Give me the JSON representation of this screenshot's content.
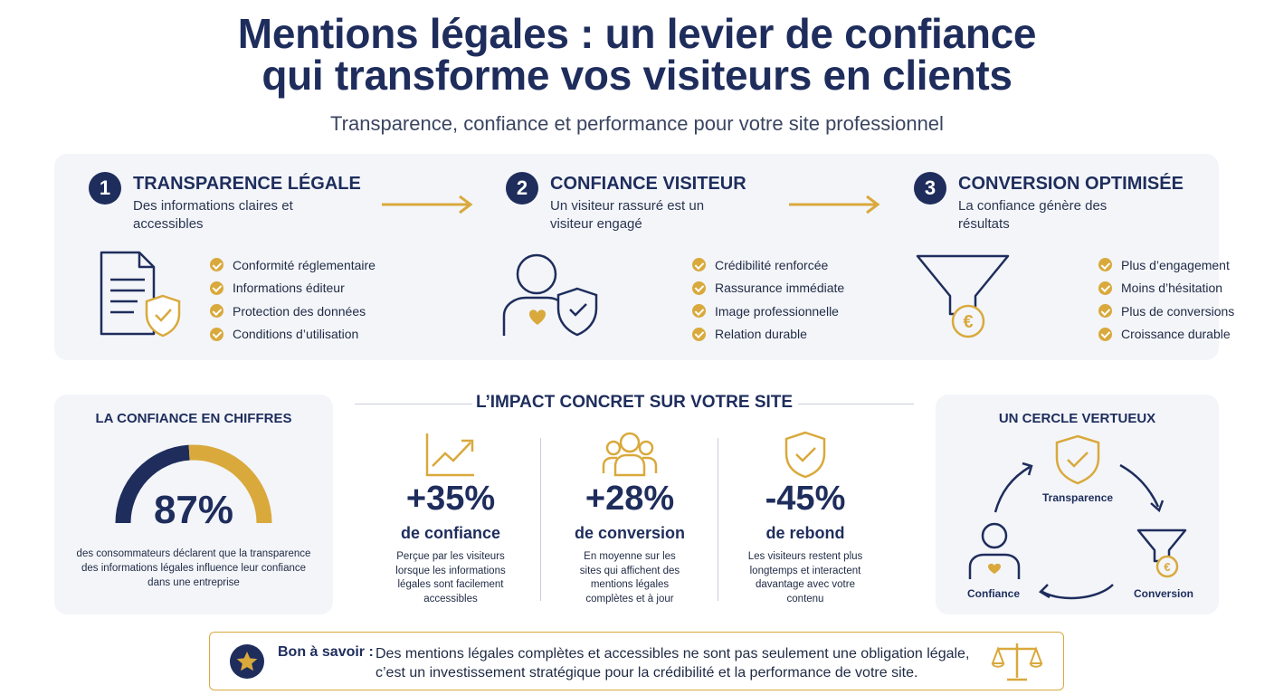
{
  "header": {
    "title_line1": "Mentions légales : un levier de confiance",
    "title_line2": "qui transforme vos visiteurs en clients",
    "subtitle": "Transparence, confiance et performance pour votre site professionnel"
  },
  "steps": [
    {
      "number": "1",
      "title": "TRANSPARENCE LÉGALE",
      "subtitle": "Des informations claires et accessibles",
      "icon": "document-shield-icon",
      "checks": [
        "Conformité réglementaire",
        "Informations éditeur",
        "Protection des données",
        "Conditions d’utilisation"
      ]
    },
    {
      "number": "2",
      "title": "CONFIANCE VISITEUR",
      "subtitle": "Un visiteur rassuré est un visiteur engagé",
      "icon": "person-shield-icon",
      "checks": [
        "Crédibilité renforcée",
        "Rassurance immédiate",
        "Image professionnelle",
        "Relation durable"
      ]
    },
    {
      "number": "3",
      "title": "CONVERSION OPTIMISÉE",
      "subtitle": "La confiance génère des résultats",
      "icon": "funnel-euro-icon",
      "checks": [
        "Plus d’engagement",
        "Moins d’hésitation",
        "Plus de conversions",
        "Croissance durable"
      ]
    }
  ],
  "stats_panel": {
    "title": "LA CONFIANCE EN CHIFFRES",
    "value": "87%",
    "gauge_fraction": 0.87,
    "caption": "des consommateurs déclarent que la transparence des informations légales influence leur confiance dans une entreprise"
  },
  "impact": {
    "title": "L’IMPACT CONCRET SUR VOTRE SITE",
    "metrics": [
      {
        "icon": "trend-up-chart-icon",
        "value": "+35%",
        "label": "de confiance",
        "description": "Perçue par les visiteurs lorsque les informations légales sont facilement accessibles"
      },
      {
        "icon": "people-group-icon",
        "value": "+28%",
        "label": "de conversion",
        "description": "En moyenne sur les sites qui affichent des mentions légales complètes et à jour"
      },
      {
        "icon": "shield-check-icon",
        "value": "-45%",
        "label": "de rebond",
        "description": "Les visiteurs restent plus longtemps et interactent davantage avec votre contenu"
      }
    ]
  },
  "cycle": {
    "title": "UN CERCLE VERTUEUX",
    "top_label": "Transparence",
    "left_label": "Confiance",
    "right_label": "Conversion"
  },
  "tip": {
    "heading": "Bon à savoir :",
    "line1": "Des mentions légales complètes et accessibles ne sont pas seulement une obligation légale,",
    "line2": "c’est un investissement stratégique pour la crédibilité et la performance de votre site.",
    "icon": "scale-balance-icon"
  },
  "colors": {
    "navy": "#1e2d5c",
    "gold": "#d9a93c",
    "panel": "#f3f5f9"
  }
}
